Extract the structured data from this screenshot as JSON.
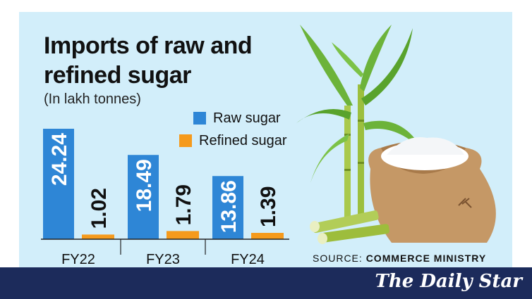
{
  "title": "Imports of raw and refined sugar",
  "subtitle": "(In lakh tonnes)",
  "source_label": "SOURCE:",
  "source_value": "COMMERCE MINISTRY",
  "brand": "The Daily Star",
  "colors": {
    "background": "#d2eefa",
    "raw": "#2e86d6",
    "refined": "#f59a1c",
    "footer": "#1c2b5b"
  },
  "illustration": "sugarcane-and-sugar-sack",
  "chart_data": {
    "type": "bar",
    "categories": [
      "FY22",
      "FY23",
      "FY24"
    ],
    "series": [
      {
        "name": "Raw sugar",
        "values": [
          24.24,
          18.49,
          13.86
        ],
        "color": "#2e86d6"
      },
      {
        "name": "Refined sugar",
        "values": [
          1.02,
          1.79,
          1.39
        ],
        "color": "#f59a1c"
      }
    ],
    "value_labels": {
      "raw": [
        "24.24",
        "18.49",
        "13.86"
      ],
      "refined": [
        "1.02",
        "1.79",
        "1.39"
      ]
    },
    "ylim": [
      0,
      24.24
    ],
    "grid": false,
    "legend_position": "top-right"
  }
}
